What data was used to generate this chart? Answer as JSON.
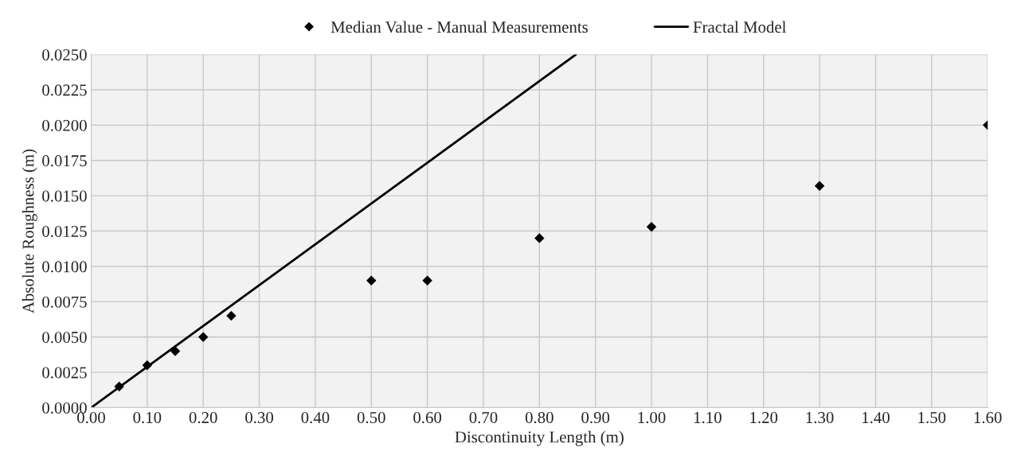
{
  "chart_data": {
    "type": "scatter",
    "xlabel": "Discontinuity Length (m)",
    "ylabel": "Absolute Roughness (m)",
    "xlim": [
      0,
      1.6
    ],
    "ylim": [
      0,
      0.025
    ],
    "xticks": [
      {
        "value": 0,
        "label": "0.00"
      },
      {
        "value": 0.1,
        "label": "0.10"
      },
      {
        "value": 0.2,
        "label": "0.20"
      },
      {
        "value": 0.3,
        "label": "0.30"
      },
      {
        "value": 0.4,
        "label": "0.40"
      },
      {
        "value": 0.5,
        "label": "0.50"
      },
      {
        "value": 0.6,
        "label": "0.60"
      },
      {
        "value": 0.7,
        "label": "0.70"
      },
      {
        "value": 0.8,
        "label": "0.80"
      },
      {
        "value": 0.9,
        "label": "0.90"
      },
      {
        "value": 1.0,
        "label": "1.00"
      },
      {
        "value": 1.1,
        "label": "1.10"
      },
      {
        "value": 1.2,
        "label": "1.20"
      },
      {
        "value": 1.3,
        "label": "1.30"
      },
      {
        "value": 1.4,
        "label": "1.40"
      },
      {
        "value": 1.5,
        "label": "1.50"
      },
      {
        "value": 1.6,
        "label": "1.60"
      }
    ],
    "yticks": [
      {
        "value": 0,
        "label": "0.0000"
      },
      {
        "value": 0.0025,
        "label": "0.0025"
      },
      {
        "value": 0.005,
        "label": "0.0050"
      },
      {
        "value": 0.0075,
        "label": "0.0075"
      },
      {
        "value": 0.01,
        "label": "0.0100"
      },
      {
        "value": 0.0125,
        "label": "0.0125"
      },
      {
        "value": 0.015,
        "label": "0.0150"
      },
      {
        "value": 0.0175,
        "label": "0.0175"
      },
      {
        "value": 0.02,
        "label": "0.0200"
      },
      {
        "value": 0.0225,
        "label": "0.0225"
      },
      {
        "value": 0.025,
        "label": "0.0250"
      }
    ],
    "grid": true,
    "legend": "top",
    "series": [
      {
        "name": "Median Value - Manual Measurements",
        "marker": "diamond",
        "color": "#000000",
        "x": [
          0.05,
          0.1,
          0.15,
          0.2,
          0.25,
          0.5,
          0.6,
          0.8,
          1.0,
          1.3,
          1.6
        ],
        "values": [
          0.0015,
          0.003,
          0.004,
          0.005,
          0.0065,
          0.009,
          0.009,
          0.012,
          0.0128,
          0.0157,
          0.02
        ]
      },
      {
        "name": "Fractal Model",
        "type": "line",
        "color": "#000000",
        "x": [
          0,
          0.865
        ],
        "values": [
          0,
          0.025
        ]
      }
    ]
  }
}
